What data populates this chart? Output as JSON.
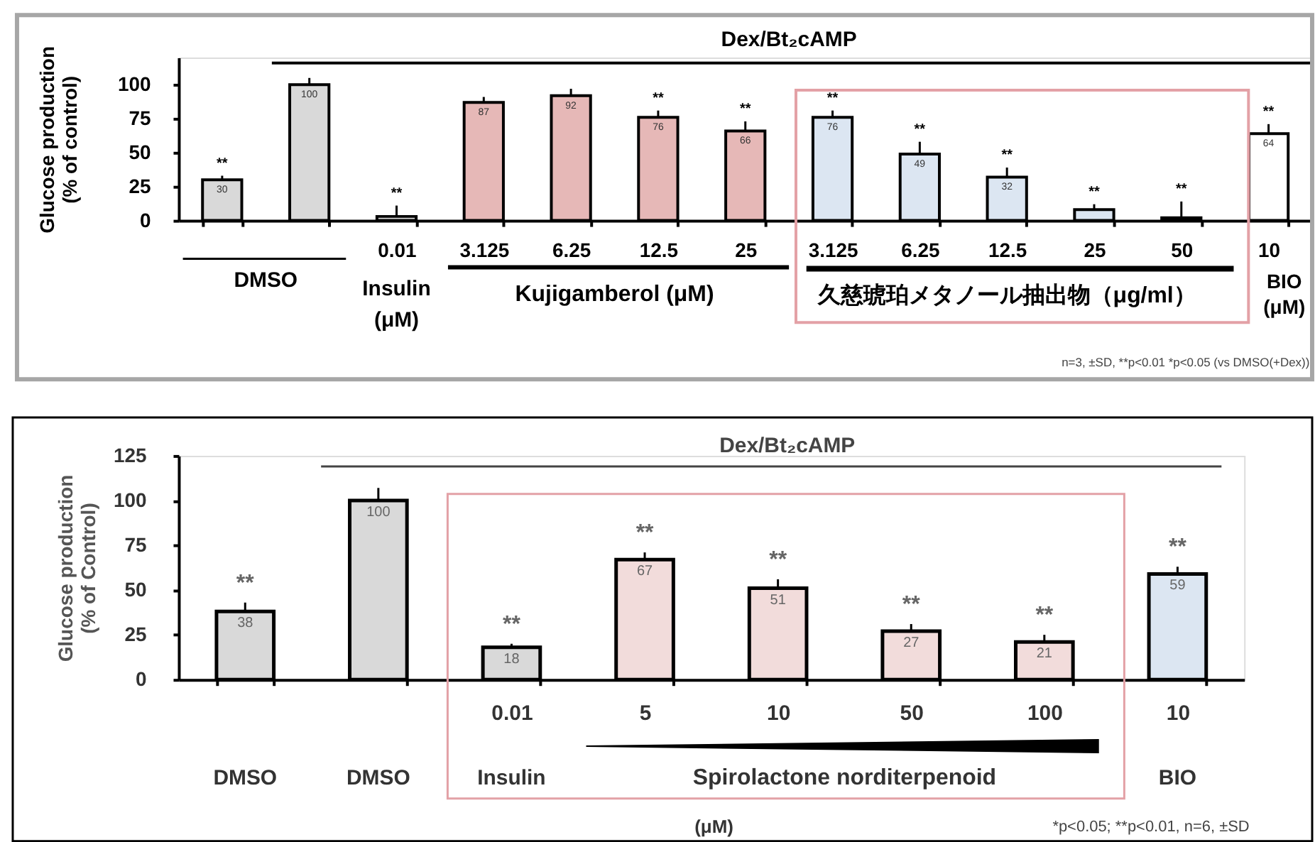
{
  "chart_data": [
    {
      "type": "bar",
      "ylabel": "Glucose production\n(% of control)",
      "categories": [
        null,
        null,
        "0.01",
        "3.125",
        "6.25",
        "12.5",
        "25",
        "3.125",
        "6.25",
        "12.5",
        "25",
        "50",
        "10"
      ],
      "values": [
        30,
        100,
        3,
        87,
        92,
        76,
        66,
        76,
        49,
        32,
        8,
        2,
        64
      ],
      "colors": [
        "#d9d9d9",
        "#d9d9d9",
        "#d9d9d9",
        "#e6b8b7",
        "#e6b8b7",
        "#e6b8b7",
        "#e6b8b7",
        "#dce6f2",
        "#dce6f2",
        "#dce6f2",
        "#dce6f2",
        "#dce6f2",
        "#ffffff"
      ],
      "errors": [
        [
          30,
          33
        ],
        [
          100,
          105
        ],
        [
          3,
          11
        ],
        [
          87,
          91
        ],
        [
          92,
          97
        ],
        [
          76,
          81
        ],
        [
          66,
          73
        ],
        [
          76,
          81
        ],
        [
          49,
          58
        ],
        [
          32,
          39
        ],
        [
          8,
          12
        ],
        [
          2,
          14
        ],
        [
          64,
          71
        ]
      ],
      "value_labels": [
        "30",
        "100",
        null,
        "87",
        "92",
        "76",
        "66",
        "76",
        "49",
        "32",
        null,
        null,
        "64"
      ],
      "ylim": [
        0,
        120
      ],
      "yticks": [
        0,
        25,
        50,
        75,
        100
      ],
      "ref_lines": [
        {
          "axis": "y",
          "value": 116,
          "label": "Dex/Bt₂cAMP"
        }
      ],
      "annotations": [
        "DMSO",
        "Insulin\n(μM)",
        "Kujigamberol (μM)",
        "久慈琥珀メタノール抽出物（μg/ml）",
        "BIO\n(μM)",
        "n=3, ±SD, **p<0.01 *p<0.05 (vs DMSO(+Dex))",
        "**",
        "**",
        "**",
        "**",
        "**",
        "**",
        "**",
        "**",
        "**",
        "**"
      ]
    },
    {
      "type": "bar",
      "ylabel": "Glucose production\n(% of Control)",
      "categories": [
        null,
        null,
        "0.01",
        "5",
        "10",
        "50",
        "100",
        "10"
      ],
      "values": [
        38,
        100,
        18,
        67,
        51,
        27,
        21,
        59
      ],
      "colors": [
        "#d9d9d9",
        "#d9d9d9",
        "#d9d9d9",
        "#f2dcdb",
        "#f2dcdb",
        "#f2dcdb",
        "#f2dcdb",
        "#dce6f2"
      ],
      "errors": [
        [
          38,
          43
        ],
        [
          100,
          107
        ],
        [
          18,
          20
        ],
        [
          67,
          71
        ],
        [
          51,
          56
        ],
        [
          27,
          31
        ],
        [
          21,
          25
        ],
        [
          59,
          63
        ]
      ],
      "data_labels": true,
      "ylim": [
        0,
        125
      ],
      "yticks": [
        0,
        25,
        50,
        75,
        100,
        125
      ],
      "ref_lines": [
        {
          "axis": "y",
          "value": 119,
          "label": "Dex/Bt₂cAMP"
        }
      ],
      "annotations": [
        "DMSO",
        "DMSO",
        "Insulin",
        "Spirolactone norditerpenoid",
        "BIO",
        "(μM)",
        "*p<0.05; **p<0.01, n=6, ±SD",
        "**",
        "**",
        "**",
        "**",
        "**",
        "**",
        "**"
      ]
    }
  ]
}
